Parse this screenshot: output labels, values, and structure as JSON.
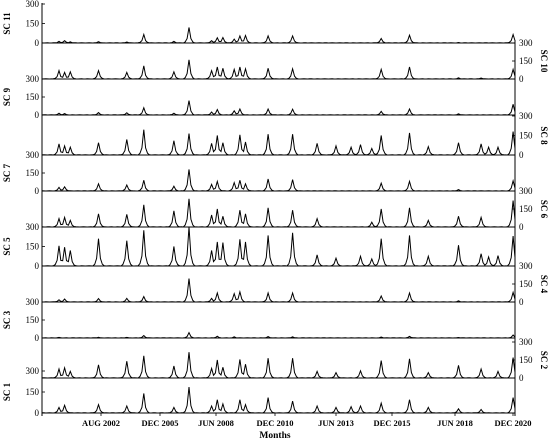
{
  "chart_data": {
    "type": "line",
    "xlabel": "Months",
    "x_tick_labels": [
      "AUG 2002",
      "DEC 2005",
      "JUN 2008",
      "DEC 2010",
      "JUN 2013",
      "DEC 2015",
      "JUN 2018",
      "DEC 2020"
    ],
    "x_range": [
      "2000-01",
      "2020-12"
    ],
    "y_ticks": [
      0,
      150,
      300
    ],
    "ylim": [
      0,
      300
    ],
    "grid": false,
    "legend": "none",
    "panels": [
      {
        "name": "SC 11",
        "axis": "left",
        "peaks": [
          [
            "2000-10",
            12
          ],
          [
            "2001-01",
            18
          ],
          [
            "2001-04",
            9
          ],
          [
            "2002-07",
            10
          ],
          [
            "2003-10",
            8
          ],
          [
            "2004-07",
            65
          ],
          [
            "2005-11",
            12
          ],
          [
            "2006-07",
            120
          ],
          [
            "2007-07",
            18
          ],
          [
            "2007-10",
            40
          ],
          [
            "2008-01",
            42
          ],
          [
            "2008-07",
            30
          ],
          [
            "2008-10",
            55
          ],
          [
            "2009-01",
            58
          ],
          [
            "2010-01",
            55
          ],
          [
            "2011-02",
            55
          ],
          [
            "2015-01",
            35
          ],
          [
            "2016-04",
            60
          ],
          [
            "2018-06",
            4
          ],
          [
            "2020-11",
            65
          ]
        ]
      },
      {
        "name": "SC 10",
        "axis": "right",
        "peaks": [
          [
            "2000-10",
            70
          ],
          [
            "2001-01",
            55
          ],
          [
            "2001-04",
            60
          ],
          [
            "2002-07",
            70
          ],
          [
            "2003-10",
            55
          ],
          [
            "2004-07",
            110
          ],
          [
            "2005-11",
            60
          ],
          [
            "2006-07",
            160
          ],
          [
            "2007-07",
            70
          ],
          [
            "2007-10",
            100
          ],
          [
            "2008-01",
            90
          ],
          [
            "2008-07",
            80
          ],
          [
            "2008-10",
            100
          ],
          [
            "2009-01",
            85
          ],
          [
            "2010-01",
            90
          ],
          [
            "2011-02",
            85
          ],
          [
            "2015-01",
            80
          ],
          [
            "2016-04",
            100
          ],
          [
            "2018-06",
            10
          ],
          [
            "2019-06",
            8
          ],
          [
            "2020-11",
            80
          ]
        ]
      },
      {
        "name": "SC 9",
        "axis": "left",
        "peaks": [
          [
            "2000-10",
            15
          ],
          [
            "2001-01",
            12
          ],
          [
            "2002-07",
            20
          ],
          [
            "2003-10",
            18
          ],
          [
            "2004-07",
            60
          ],
          [
            "2005-11",
            15
          ],
          [
            "2006-07",
            120
          ],
          [
            "2007-07",
            25
          ],
          [
            "2007-10",
            45
          ],
          [
            "2008-07",
            35
          ],
          [
            "2008-10",
            50
          ],
          [
            "2010-01",
            50
          ],
          [
            "2011-02",
            48
          ],
          [
            "2015-01",
            30
          ],
          [
            "2016-04",
            50
          ],
          [
            "2018-06",
            10
          ],
          [
            "2020-11",
            90
          ]
        ]
      },
      {
        "name": "SC 8",
        "axis": "right",
        "peaks": [
          [
            "2000-10",
            85
          ],
          [
            "2001-01",
            70
          ],
          [
            "2001-04",
            60
          ],
          [
            "2002-07",
            95
          ],
          [
            "2003-10",
            120
          ],
          [
            "2004-07",
            195
          ],
          [
            "2005-11",
            110
          ],
          [
            "2006-07",
            165
          ],
          [
            "2007-07",
            90
          ],
          [
            "2007-10",
            150
          ],
          [
            "2008-01",
            95
          ],
          [
            "2008-10",
            155
          ],
          [
            "2009-01",
            100
          ],
          [
            "2010-01",
            160
          ],
          [
            "2011-02",
            160
          ],
          [
            "2012-03",
            90
          ],
          [
            "2013-01",
            70
          ],
          [
            "2013-09",
            60
          ],
          [
            "2014-02",
            80
          ],
          [
            "2014-08",
            50
          ],
          [
            "2015-01",
            150
          ],
          [
            "2016-04",
            170
          ],
          [
            "2017-02",
            65
          ],
          [
            "2018-06",
            95
          ],
          [
            "2019-06",
            85
          ],
          [
            "2019-10",
            60
          ],
          [
            "2020-03",
            60
          ],
          [
            "2020-11",
            180
          ]
        ]
      },
      {
        "name": "SC 7",
        "axis": "left",
        "peaks": [
          [
            "2000-10",
            30
          ],
          [
            "2001-01",
            35
          ],
          [
            "2002-07",
            60
          ],
          [
            "2003-10",
            50
          ],
          [
            "2004-07",
            90
          ],
          [
            "2005-11",
            40
          ],
          [
            "2006-07",
            180
          ],
          [
            "2007-07",
            55
          ],
          [
            "2007-10",
            80
          ],
          [
            "2008-07",
            70
          ],
          [
            "2008-10",
            90
          ],
          [
            "2009-01",
            60
          ],
          [
            "2010-01",
            100
          ],
          [
            "2011-02",
            95
          ],
          [
            "2015-01",
            65
          ],
          [
            "2016-04",
            80
          ],
          [
            "2018-06",
            12
          ],
          [
            "2020-11",
            85
          ]
        ]
      },
      {
        "name": "SC 6",
        "axis": "right",
        "peaks": [
          [
            "2000-10",
            70
          ],
          [
            "2001-01",
            80
          ],
          [
            "2001-04",
            55
          ],
          [
            "2002-07",
            110
          ],
          [
            "2003-10",
            105
          ],
          [
            "2004-07",
            185
          ],
          [
            "2005-11",
            135
          ],
          [
            "2006-07",
            235
          ],
          [
            "2007-07",
            100
          ],
          [
            "2007-10",
            150
          ],
          [
            "2008-01",
            90
          ],
          [
            "2008-10",
            140
          ],
          [
            "2009-01",
            110
          ],
          [
            "2010-01",
            160
          ],
          [
            "2011-02",
            140
          ],
          [
            "2012-03",
            70
          ],
          [
            "2014-08",
            40
          ],
          [
            "2015-01",
            150
          ],
          [
            "2016-04",
            160
          ],
          [
            "2017-02",
            55
          ],
          [
            "2018-06",
            90
          ],
          [
            "2019-06",
            80
          ],
          [
            "2020-11",
            220
          ]
        ]
      },
      {
        "name": "SC 5",
        "axis": "left",
        "peaks": [
          [
            "2000-10",
            155
          ],
          [
            "2001-01",
            145
          ],
          [
            "2001-04",
            120
          ],
          [
            "2002-07",
            210
          ],
          [
            "2003-10",
            195
          ],
          [
            "2004-07",
            275
          ],
          [
            "2005-11",
            150
          ],
          [
            "2006-07",
            300
          ],
          [
            "2007-07",
            120
          ],
          [
            "2007-10",
            185
          ],
          [
            "2008-01",
            180
          ],
          [
            "2008-10",
            205
          ],
          [
            "2009-01",
            185
          ],
          [
            "2010-01",
            235
          ],
          [
            "2011-02",
            255
          ],
          [
            "2012-03",
            85
          ],
          [
            "2013-01",
            60
          ],
          [
            "2014-02",
            75
          ],
          [
            "2014-08",
            55
          ],
          [
            "2015-01",
            210
          ],
          [
            "2016-04",
            235
          ],
          [
            "2017-02",
            75
          ],
          [
            "2018-06",
            160
          ],
          [
            "2019-06",
            95
          ],
          [
            "2019-10",
            70
          ],
          [
            "2020-03",
            80
          ],
          [
            "2020-11",
            230
          ]
        ]
      },
      {
        "name": "SC 4",
        "axis": "right",
        "peaks": [
          [
            "2000-10",
            18
          ],
          [
            "2001-01",
            25
          ],
          [
            "2002-07",
            28
          ],
          [
            "2003-10",
            30
          ],
          [
            "2004-07",
            45
          ],
          [
            "2006-07",
            195
          ],
          [
            "2007-07",
            30
          ],
          [
            "2007-10",
            75
          ],
          [
            "2008-07",
            70
          ],
          [
            "2008-10",
            85
          ],
          [
            "2010-01",
            75
          ],
          [
            "2011-02",
            75
          ],
          [
            "2015-01",
            50
          ],
          [
            "2016-04",
            75
          ],
          [
            "2018-06",
            10
          ],
          [
            "2020-11",
            80
          ]
        ]
      },
      {
        "name": "SC 3",
        "axis": "left",
        "peaks": [
          [
            "2000-10",
            5
          ],
          [
            "2002-07",
            6
          ],
          [
            "2003-10",
            5
          ],
          [
            "2004-07",
            20
          ],
          [
            "2006-07",
            45
          ],
          [
            "2007-10",
            15
          ],
          [
            "2008-07",
            10
          ],
          [
            "2010-01",
            12
          ],
          [
            "2011-02",
            10
          ],
          [
            "2015-01",
            8
          ],
          [
            "2016-04",
            14
          ],
          [
            "2018-06",
            4
          ],
          [
            "2020-11",
            25
          ]
        ]
      },
      {
        "name": "SC 2",
        "axis": "right",
        "peaks": [
          [
            "2000-10",
            75
          ],
          [
            "2001-01",
            85
          ],
          [
            "2001-04",
            55
          ],
          [
            "2002-07",
            110
          ],
          [
            "2003-10",
            140
          ],
          [
            "2004-07",
            185
          ],
          [
            "2005-11",
            100
          ],
          [
            "2006-07",
            215
          ],
          [
            "2007-07",
            80
          ],
          [
            "2007-10",
            150
          ],
          [
            "2008-01",
            90
          ],
          [
            "2008-10",
            155
          ],
          [
            "2009-01",
            115
          ],
          [
            "2010-01",
            165
          ],
          [
            "2011-02",
            165
          ],
          [
            "2012-03",
            55
          ],
          [
            "2013-01",
            45
          ],
          [
            "2014-02",
            60
          ],
          [
            "2015-01",
            145
          ],
          [
            "2016-04",
            160
          ],
          [
            "2017-02",
            45
          ],
          [
            "2018-06",
            105
          ],
          [
            "2019-06",
            75
          ],
          [
            "2020-03",
            55
          ],
          [
            "2020-11",
            170
          ]
        ]
      },
      {
        "name": "SC 1",
        "axis": "left",
        "peaks": [
          [
            "2000-10",
            40
          ],
          [
            "2001-01",
            55
          ],
          [
            "2002-07",
            60
          ],
          [
            "2003-10",
            50
          ],
          [
            "2004-07",
            140
          ],
          [
            "2005-11",
            40
          ],
          [
            "2006-07",
            185
          ],
          [
            "2007-07",
            50
          ],
          [
            "2007-10",
            95
          ],
          [
            "2008-01",
            65
          ],
          [
            "2008-10",
            95
          ],
          [
            "2009-01",
            60
          ],
          [
            "2010-01",
            110
          ],
          [
            "2011-02",
            85
          ],
          [
            "2012-03",
            50
          ],
          [
            "2013-01",
            40
          ],
          [
            "2013-09",
            45
          ],
          [
            "2014-02",
            50
          ],
          [
            "2015-01",
            70
          ],
          [
            "2016-04",
            95
          ],
          [
            "2017-02",
            40
          ],
          [
            "2018-06",
            30
          ],
          [
            "2019-06",
            25
          ],
          [
            "2020-11",
            110
          ]
        ]
      }
    ]
  }
}
